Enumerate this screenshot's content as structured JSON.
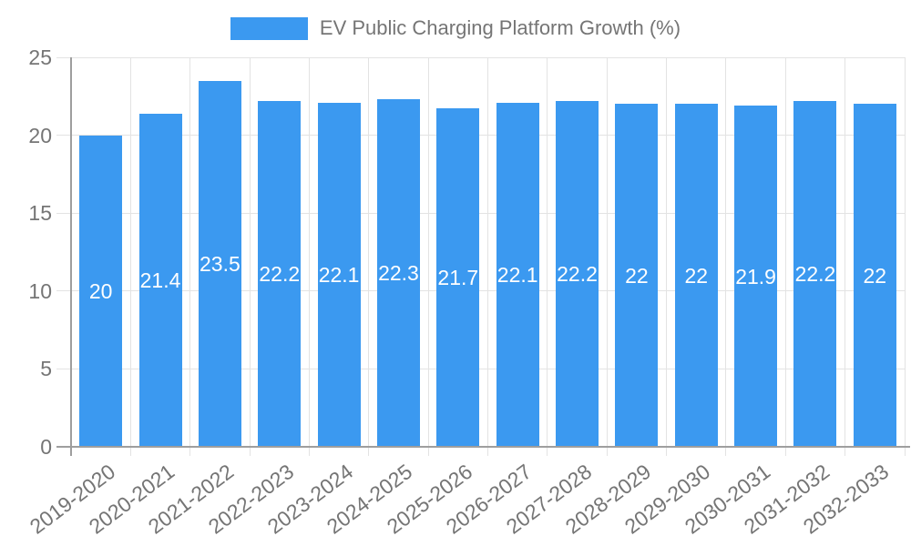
{
  "chart_data": {
    "type": "bar",
    "title": "EV Public Charging Platform Growth (%)",
    "categories": [
      "2019-2020",
      "2020-2021",
      "2021-2022",
      "2022-2023",
      "2023-2024",
      "2024-2025",
      "2025-2026",
      "2026-2027",
      "2027-2028",
      "2028-2029",
      "2029-2030",
      "2030-2031",
      "2031-2032",
      "2032-2033"
    ],
    "values": [
      20,
      21.4,
      23.5,
      22.2,
      22.1,
      22.3,
      21.7,
      22.1,
      22.2,
      22,
      22,
      21.9,
      22.2,
      22
    ],
    "xlabel": "",
    "ylabel": "",
    "ylim": [
      0,
      25
    ],
    "yticks": [
      0,
      5,
      10,
      15,
      20,
      25
    ],
    "grid": true,
    "value_labels_shown": true,
    "legend": {
      "label": "EV Public Charging Platform Growth (%)",
      "position": "top-center"
    },
    "colors": {
      "bar": "#3b99f0",
      "value_label": "#ffffff",
      "axis_text": "#757575",
      "axis_line": "#9e9e9e",
      "gridline": "#e3e3e3"
    }
  }
}
